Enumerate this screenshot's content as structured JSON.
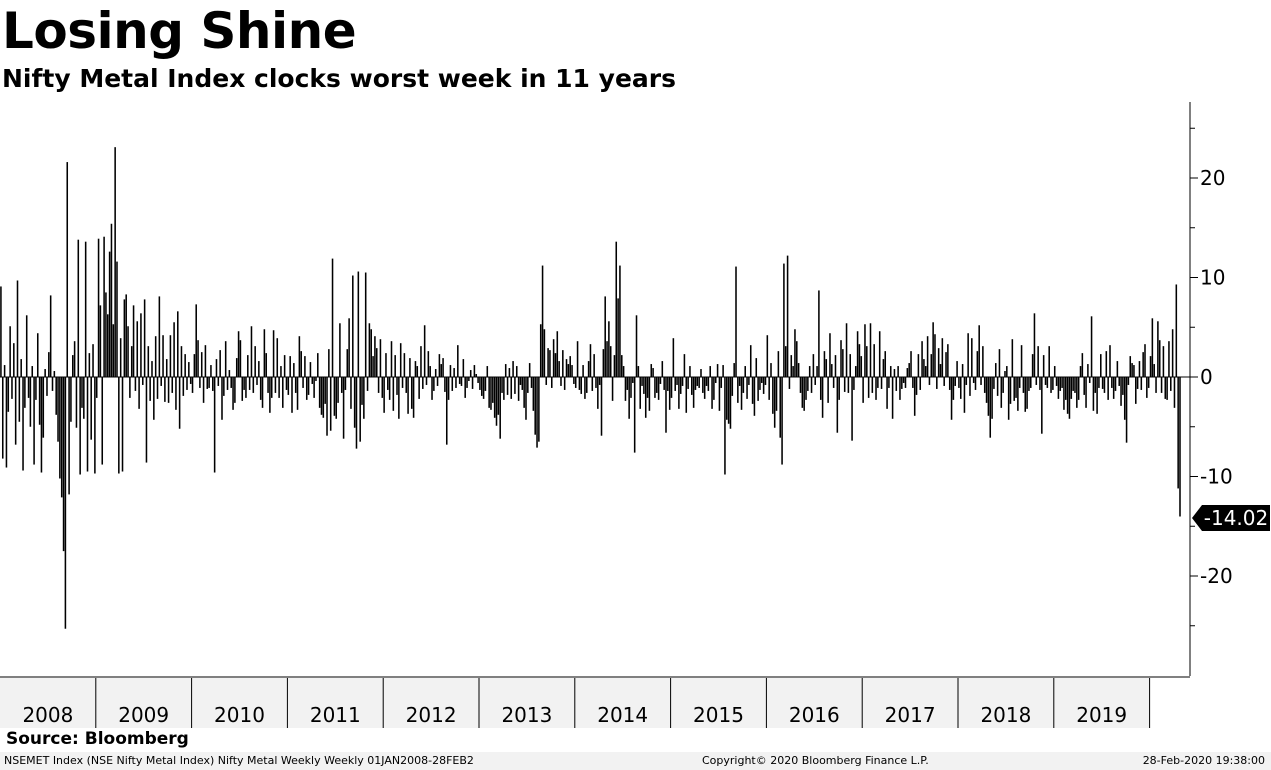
{
  "header": {
    "title": "Losing Shine",
    "subtitle": "Nifty Metal Index clocks worst week in 11 years"
  },
  "source": "Source: Bloomberg",
  "footer": {
    "left": "NSEMET Index (NSE Nifty Metal Index) Nifty Metal Weekly  Weekly 01JAN2008-28FEB2",
    "middle": "Copyright© 2020 Bloomberg Finance L.P.",
    "right": "28-Feb-2020 19:38:00"
  },
  "colors": {
    "bars": "#000000",
    "axis": "#000000",
    "callout_bg": "#000000",
    "callout_text": "#ffffff"
  },
  "chart_data": {
    "type": "bar",
    "title": "Losing Shine",
    "subtitle": "Nifty Metal Index clocks worst week in 11 years",
    "ylabel": "",
    "xlabel": "",
    "ylim": [
      -30,
      28
    ],
    "yticks": [
      20,
      10,
      0,
      -10,
      -20
    ],
    "ytick_labels": [
      "20",
      "10",
      "0",
      "-10",
      "-20"
    ],
    "y_axis_side": "right",
    "grid": false,
    "x_categories": [
      "2008",
      "2009",
      "2010",
      "2011",
      "2012",
      "2013",
      "2014",
      "2015",
      "2016",
      "2017",
      "2018",
      "2019"
    ],
    "last_value_label": "-14.02",
    "series": [
      {
        "frequency": "weekly",
        "years": [
          {
            "year": 2008,
            "values": [
              9.1,
              -8.2,
              1.2,
              -9.1,
              -3.5,
              5.1,
              -2.2,
              3.4,
              -6.8,
              9.7,
              -4.5,
              1.8,
              -9.4,
              -3.1,
              6.2,
              -2.1,
              -5.0,
              1.1,
              -8.8,
              -2.3,
              4.4,
              -4.8,
              -9.6,
              -6.1,
              0.8,
              -1.9,
              2.5,
              8.2,
              -1.4,
              0.6,
              -3.8,
              -6.5,
              -10.2,
              -12.1,
              -17.5,
              -25.3,
              21.6,
              -11.8,
              -4.5,
              2.2,
              3.6,
              -5.1,
              13.8,
              -9.8,
              -3.1,
              -4.2,
              13.6,
              -9.5,
              2.4,
              -6.3,
              3.3,
              -9.7
            ]
          },
          {
            "year": 2009,
            "values": [
              -2.1,
              13.9,
              7.2,
              -8.8,
              14.1,
              8.5,
              6.3,
              12.6,
              15.4,
              5.3,
              23.1,
              11.6,
              -9.7,
              3.9,
              -9.5,
              7.8,
              8.3,
              5.1,
              -2.1,
              3.1,
              7.2,
              -1.4,
              5.6,
              -3.2,
              6.4,
              -0.8,
              7.8,
              -8.6,
              3.1,
              -2.4,
              1.6,
              -4.3,
              4.1,
              -2.2,
              8.1,
              -0.9,
              4.2,
              -2.5,
              1.8,
              -2.6,
              4.2,
              -1.6,
              5.5,
              -3.3,
              6.6,
              -5.2,
              3.1,
              -1.9,
              2.3,
              -1.3,
              1.5,
              -0.7
            ]
          },
          {
            "year": 2010,
            "values": [
              -1.6,
              2.3,
              7.3,
              3.7,
              -1.1,
              2.5,
              -2.6,
              3.2,
              -1.2,
              -1.1,
              1.2,
              -1.4,
              -9.6,
              1.8,
              -0.9,
              2.7,
              -4.3,
              -1.9,
              3.6,
              -1.3,
              0.7,
              -1.1,
              -3.3,
              -2.6,
              1.9,
              4.6,
              3.7,
              -2.4,
              -1.3,
              -2.1,
              2.2,
              -1.3,
              5.1,
              -1.6,
              3.1,
              -0.8,
              1.6,
              -2.3,
              -3.1,
              4.8,
              2.4,
              -1.6,
              -3.6,
              -2.1,
              4.7,
              -1.6,
              3.9,
              -2.1,
              1.1,
              -3.1,
              2.2,
              -1.3
            ]
          },
          {
            "year": 2011,
            "values": [
              -1.8,
              2.1,
              -3.6,
              1.4,
              -1.6,
              -3.3,
              4.1,
              2.6,
              -1.1,
              2.1,
              -2.3,
              -1.8,
              1.5,
              -0.7,
              -2.1,
              -0.4,
              2.4,
              -3.1,
              -3.8,
              -4.1,
              -2.7,
              -5.9,
              2.8,
              -5.4,
              11.9,
              -3.9,
              -4.2,
              -2.6,
              5.4,
              -1.6,
              -6.2,
              -1.3,
              2.8,
              5.9,
              -3.2,
              10.2,
              -5.1,
              -7.2,
              10.6,
              -6.5,
              -2.8,
              -4.2,
              10.5,
              -1.4,
              5.4,
              4.8,
              2.1,
              4.1,
              2.9,
              -1.6,
              3.8,
              -2.1
            ]
          },
          {
            "year": 2012,
            "values": [
              -3.6,
              2.4,
              -1.3,
              -2.3,
              3.6,
              -3.4,
              2.2,
              -1.8,
              -4.2,
              3.4,
              -1.1,
              2.4,
              -1.6,
              -3.7,
              1.9,
              -3.2,
              -4.1,
              1.6,
              1.1,
              -2.2,
              3.1,
              -1.2,
              5.2,
              -0.8,
              2.6,
              1.1,
              -2.3,
              -1.4,
              0.8,
              -0.9,
              2.3,
              1.3,
              1.9,
              -1.5,
              -6.8,
              -2.3,
              1.2,
              -1.4,
              0.9,
              -1.1,
              3.2,
              -0.7,
              -0.9,
              1.8,
              -2.1,
              -1.1,
              -0.4,
              0.7,
              -1.2,
              1.2,
              0.3,
              -0.6
            ]
          },
          {
            "year": 2013,
            "values": [
              -1.3,
              -1.9,
              -2.2,
              -1.4,
              1.1,
              -3.1,
              -3.3,
              -2.6,
              -4.1,
              -4.9,
              -3.8,
              -6.2,
              -1.6,
              -2.3,
              1.3,
              -1.8,
              0.9,
              -2.2,
              1.6,
              -1.7,
              1.1,
              -2.4,
              -0.8,
              -1.3,
              -3.1,
              -4.3,
              -1.6,
              1.4,
              -1.1,
              -3.4,
              -5.8,
              -7.1,
              -6.5,
              5.3,
              11.2,
              4.8,
              -0.8,
              2.9,
              2.7,
              -1.1,
              3.8,
              2.4,
              4.6,
              1.6,
              -0.9,
              2.7,
              -1.3,
              1.8,
              1.3,
              2.1,
              1.2,
              -0.7
            ]
          },
          {
            "year": 2014,
            "values": [
              -1.1,
              3.6,
              -1.3,
              -1.7,
              1.2,
              -2.2,
              -1.6,
              1.6,
              3.3,
              -1.4,
              2.3,
              -1.1,
              -3.2,
              -0.8,
              -5.9,
              2.8,
              8.1,
              3.6,
              5.6,
              3.1,
              -2.4,
              2.2,
              13.6,
              7.9,
              11.2,
              2.2,
              1.1,
              -2.4,
              -1.3,
              -4.2,
              -2.1,
              -0.6,
              -7.6,
              6.2,
              1.1,
              -3.2,
              -0.9,
              -1.7,
              -4.1,
              -2.1,
              -3.4,
              1.3,
              0.9,
              -2.1,
              -1.6,
              -2.3,
              -0.7,
              1.6,
              -1.3,
              -5.6,
              -1.4,
              -3.3
            ]
          },
          {
            "year": 2015,
            "values": [
              -2.1,
              3.9,
              -1.4,
              -0.8,
              -3.2,
              -1.7,
              -0.9,
              2.3,
              -3.6,
              -1.2,
              1.1,
              -1.8,
              -3.1,
              -1.3,
              -0.9,
              -1.1,
              0.8,
              -1.6,
              -2.2,
              -0.9,
              -1.4,
              1.1,
              -3.2,
              -2.3,
              -0.6,
              1.3,
              -3.4,
              -1.1,
              1.2,
              -9.8,
              -4.3,
              -4.7,
              -5.2,
              -1.9,
              1.4,
              11.1,
              -2.6,
              -0.9,
              -3.3,
              -1.6,
              1.1,
              -2.2,
              -0.8,
              3.2,
              -2.7,
              -3.9,
              1.9,
              -2.4,
              -1.3,
              -0.6,
              -1.7,
              -0.8
            ]
          },
          {
            "year": 2016,
            "values": [
              4.2,
              -2.3,
              1.4,
              -3.7,
              -5.1,
              -3.4,
              2.6,
              -6.1,
              -8.8,
              11.4,
              3.1,
              12.2,
              -1.2,
              2.2,
              1.1,
              4.8,
              3.6,
              1.4,
              -1.6,
              -3.1,
              -3.4,
              -2.3,
              -1.4,
              1.1,
              -1.6,
              2.3,
              -0.8,
              1.1,
              8.7,
              -2.3,
              -4.1,
              2.6,
              1.8,
              -2.6,
              4.4,
              1.3,
              -1.1,
              2.2,
              -5.6,
              -2.3,
              3.7,
              2.8,
              -1.5,
              5.4,
              -1.6,
              2.3,
              -6.4,
              -1.3,
              1.1,
              4.6,
              3.3,
              2.1
            ]
          },
          {
            "year": 2017,
            "values": [
              -2.6,
              5.3,
              3.1,
              -2.1,
              5.4,
              -1.6,
              3.3,
              -2.3,
              -1.1,
              4.6,
              -1.2,
              1.8,
              2.6,
              -3.2,
              -1.1,
              1.1,
              -4.2,
              0.8,
              -1.4,
              1.1,
              -2.3,
              -1.2,
              -0.6,
              -1.1,
              0.9,
              1.4,
              2.6,
              -1.1,
              -3.9,
              -1.8,
              2.3,
              -1.3,
              3.6,
              1.8,
              1.1,
              4.1,
              -0.8,
              2.3,
              5.5,
              4.3,
              -1.2,
              2.9,
              1.3,
              3.9,
              -0.9,
              2.5,
              3.3,
              -1.3,
              -4.3,
              -2.3,
              -0.9,
              1.6
            ]
          },
          {
            "year": 2018,
            "values": [
              -1.1,
              -2.2,
              1.3,
              -3.6,
              -0.8,
              4.4,
              -1.9,
              3.9,
              -0.6,
              -1.3,
              2.6,
              5.2,
              -0.8,
              3.1,
              -1.6,
              -2.6,
              -3.9,
              -6.1,
              -4.2,
              -1.2,
              1.4,
              -1.9,
              2.8,
              -3.1,
              -1.6,
              0.6,
              1.1,
              -4.3,
              -2.7,
              3.8,
              -2.4,
              -2.1,
              -3.4,
              -1.1,
              3.2,
              -1.6,
              -3.5,
              -3.2,
              -1.4,
              -1.1,
              2.3,
              6.4,
              -0.8,
              3.1,
              -1.3,
              -5.7,
              2.2,
              -0.8,
              -1.1,
              3.1,
              -1.6,
              -1.3
            ]
          },
          {
            "year": 2019,
            "values": [
              1.1,
              -0.9,
              -2.2,
              -1.4,
              -1.1,
              -3.3,
              -2.3,
              -3.7,
              -4.2,
              -2.2,
              -1.4,
              -1.6,
              -3.1,
              -2.3,
              1.1,
              2.4,
              -1.8,
              -3.1,
              1.3,
              -0.6,
              6.1,
              -3.4,
              -1.6,
              -3.7,
              -1.1,
              2.3,
              -1.2,
              -1.6,
              2.6,
              -2.3,
              3.2,
              -1.1,
              -2.2,
              -1.4,
              1.6,
              -0.9,
              -2.9,
              -1.8,
              -4.3,
              -6.6,
              -0.8,
              2.1,
              1.4,
              1.2,
              -2.7,
              -1.2,
              1.6,
              -1.3,
              2.5,
              3.3,
              -2.1,
              -1.1
            ]
          },
          {
            "year": 2020,
            "values": [
              2.1,
              5.9,
              1.3,
              -1.6,
              5.6,
              3.7,
              -1.6,
              3.1,
              -2.2,
              -2.3,
              3.6,
              -1.4,
              4.8,
              -3.1,
              9.3,
              -11.2,
              -14.02
            ]
          }
        ]
      }
    ]
  }
}
